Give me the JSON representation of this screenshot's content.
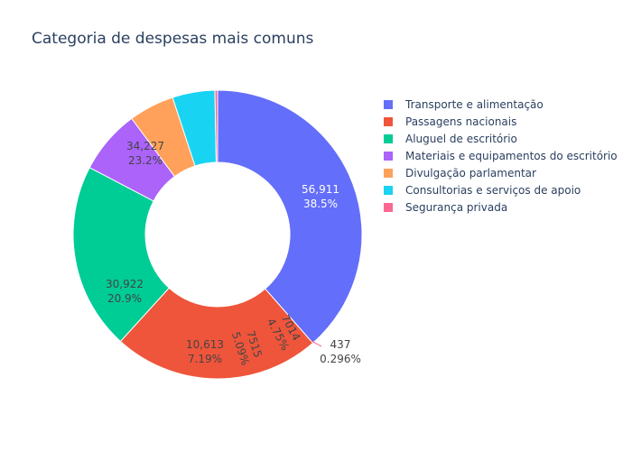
{
  "chart_data": {
    "type": "pie",
    "hole": true,
    "title": "Categoria de despesas mais comuns",
    "legend_position": "right",
    "slices": [
      {
        "label": "Transporte e alimentação",
        "value": 56911,
        "value_text": "56,911",
        "percent_text": "38.5%",
        "color": "#636efa"
      },
      {
        "label": "Passagens nacionais",
        "value": 34227,
        "value_text": "34,227",
        "percent_text": "23.2%",
        "color": "#ef553b"
      },
      {
        "label": "Aluguel de escritório",
        "value": 30922,
        "value_text": "30,922",
        "percent_text": "20.9%",
        "color": "#00cc96"
      },
      {
        "label": "Materiais e equipamentos do escritório",
        "value": 10613,
        "value_text": "10,613",
        "percent_text": "7.19%",
        "color": "#ab63fa"
      },
      {
        "label": "Divulgação parlamentar",
        "value": 7515,
        "value_text": "7515",
        "percent_text": "5.09%",
        "color": "#ffa15a"
      },
      {
        "label": "Consultorias e serviços de apoio",
        "value": 7014,
        "value_text": "7014",
        "percent_text": "4.75%",
        "color": "#19d3f3"
      },
      {
        "label": "Segurança privada",
        "value": 437,
        "value_text": "437",
        "percent_text": "0.296%",
        "color": "#ff6692"
      }
    ]
  }
}
